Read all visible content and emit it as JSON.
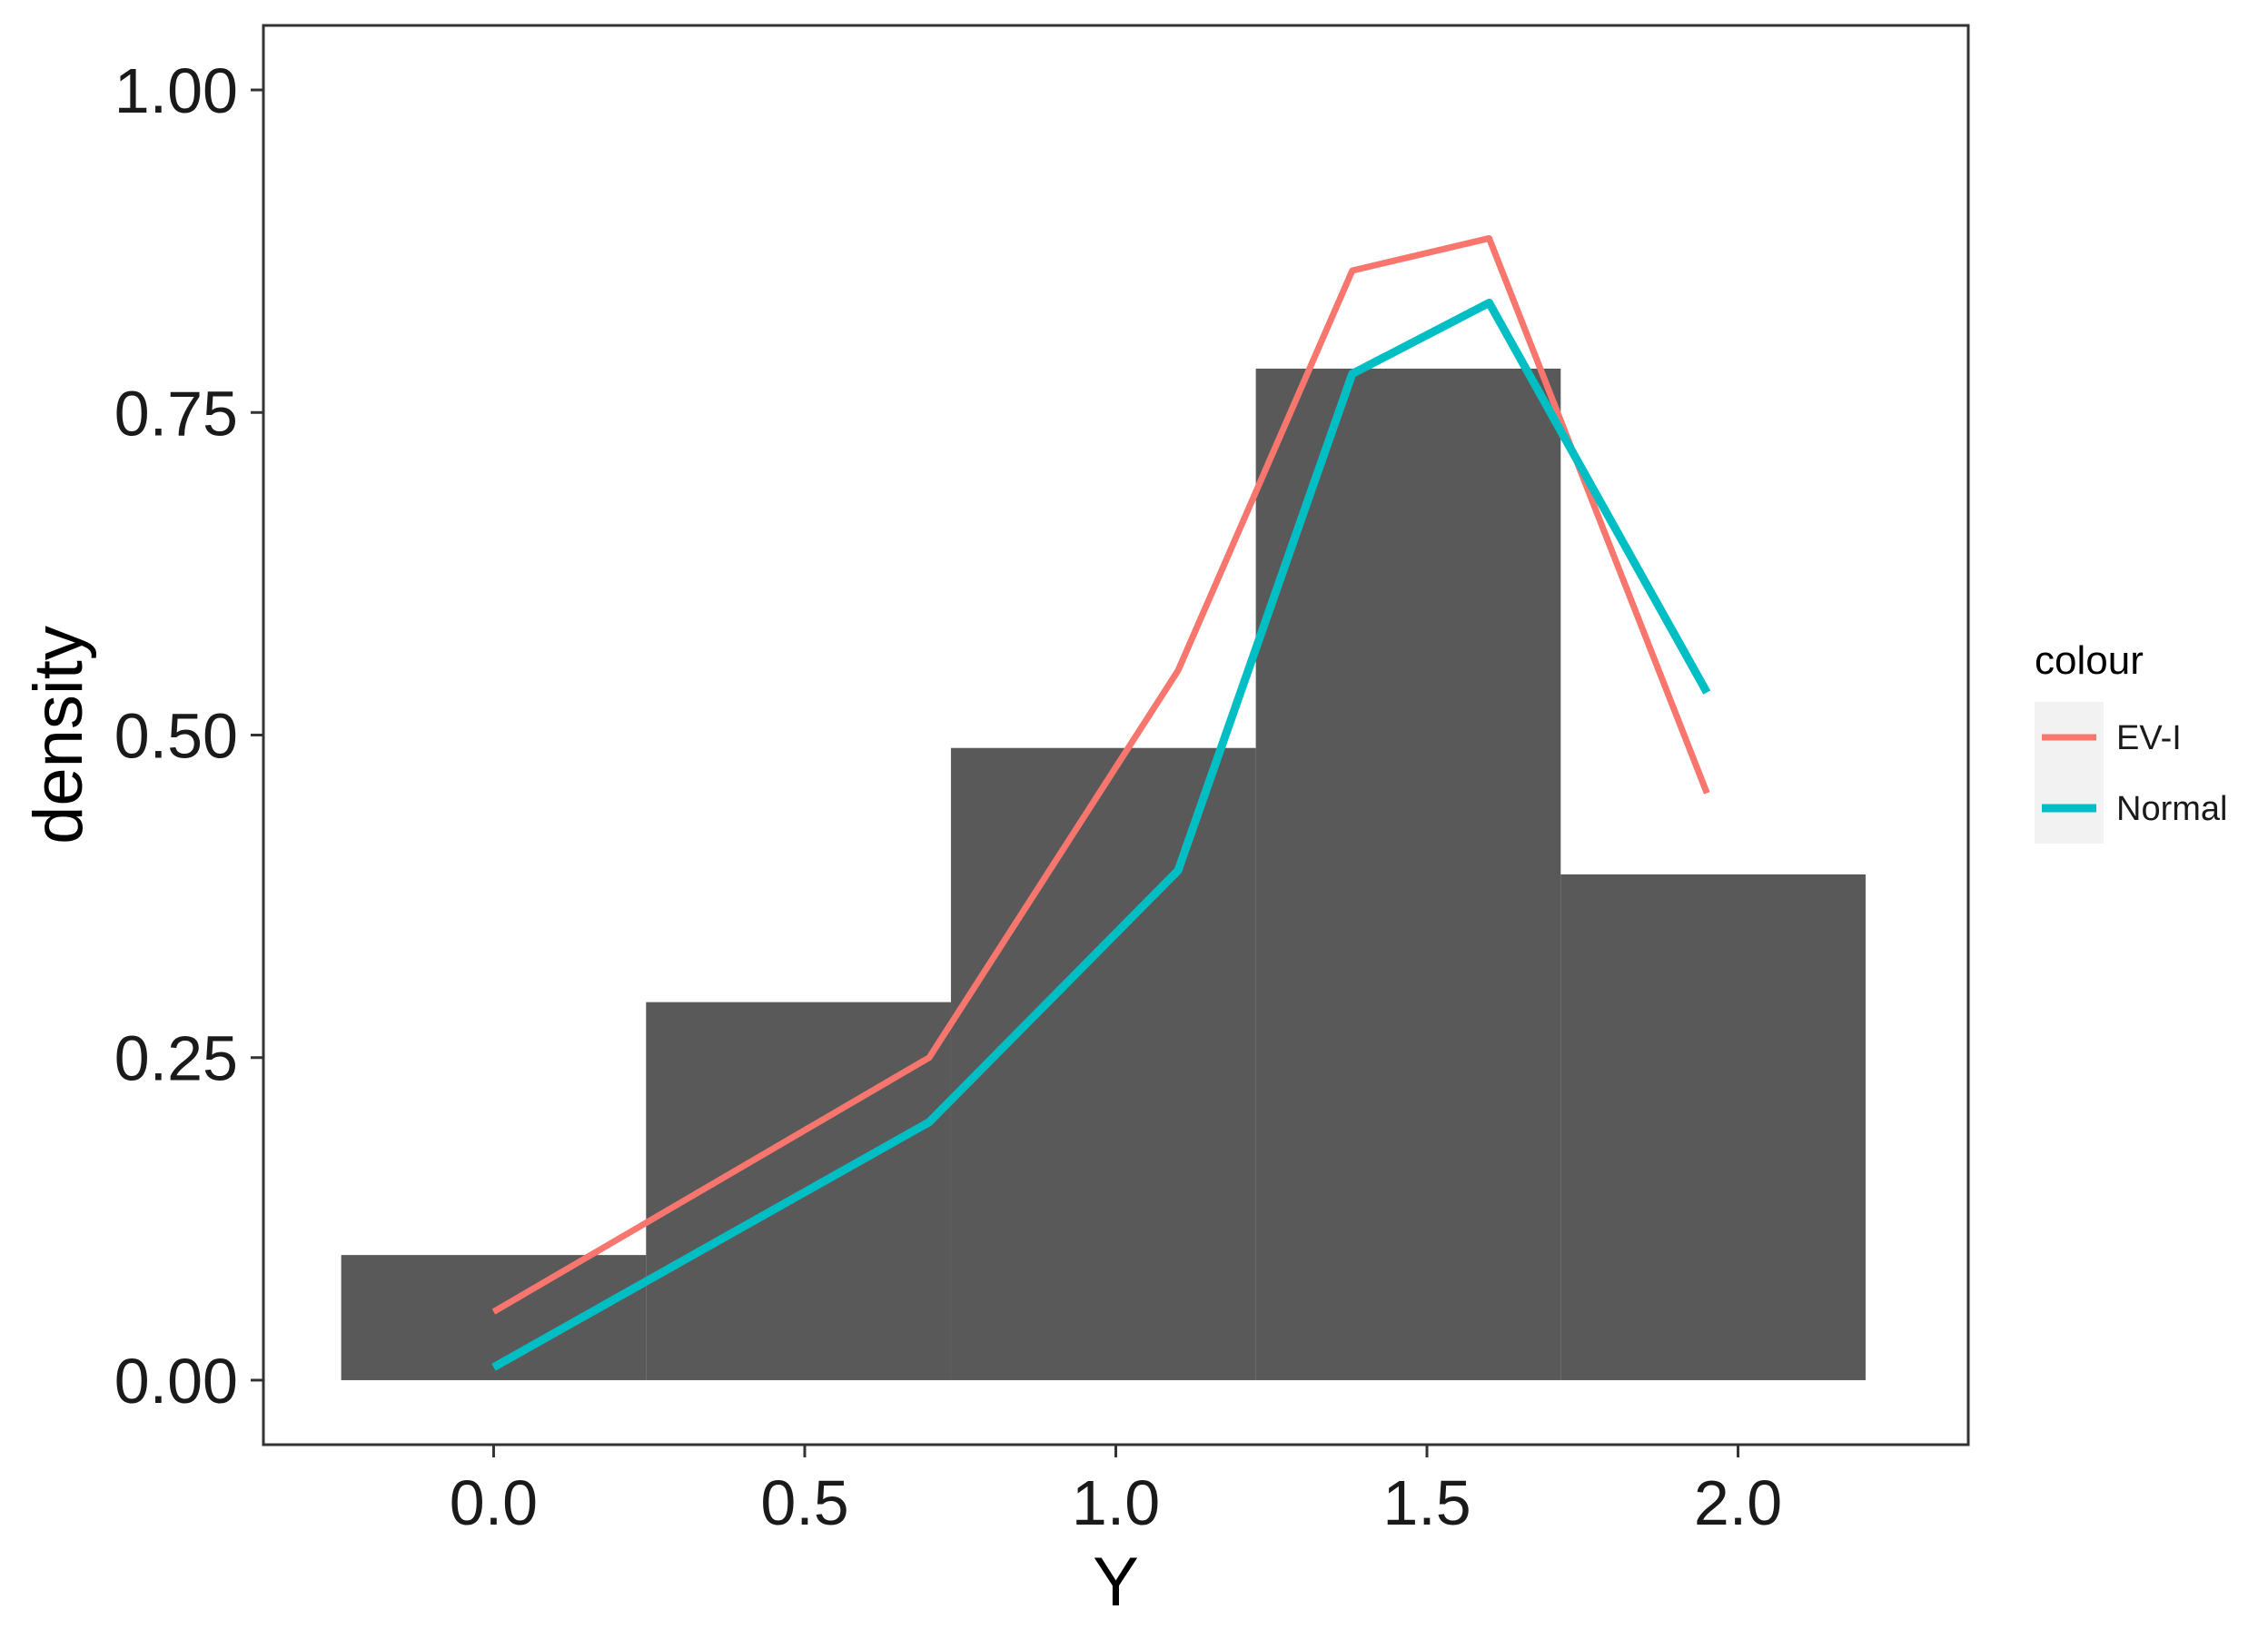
{
  "chart_data": {
    "type": "histogram",
    "xlabel": "Y",
    "ylabel": "density",
    "xlim": [
      -0.37,
      2.37
    ],
    "ylim": [
      -0.05,
      1.05
    ],
    "x_ticks": [
      "0.0",
      "0.5",
      "1.0",
      "1.5",
      "2.0"
    ],
    "y_ticks": [
      "0.00",
      "0.25",
      "0.50",
      "0.75",
      "1.00"
    ],
    "x_tick_values": [
      0.0,
      0.5,
      1.0,
      1.5,
      2.0
    ],
    "y_tick_values": [
      0.0,
      0.25,
      0.5,
      0.75,
      1.0
    ],
    "grid": false,
    "bar_color": "#595959",
    "bins": [
      {
        "x0": -0.245,
        "x1": 0.245,
        "density": 0.097
      },
      {
        "x0": 0.245,
        "x1": 0.735,
        "density": 0.293
      },
      {
        "x0": 0.735,
        "x1": 1.225,
        "density": 0.49
      },
      {
        "x0": 1.225,
        "x1": 1.715,
        "density": 0.784
      },
      {
        "x0": 1.715,
        "x1": 2.205,
        "density": 0.392
      }
    ],
    "legend": {
      "title": "colour",
      "position": "right"
    },
    "series": [
      {
        "name": "EV-I",
        "color": "#F8766D",
        "x": [
          0.0,
          0.7,
          1.1,
          1.38,
          1.6,
          1.95
        ],
        "y": [
          0.053,
          0.25,
          0.55,
          0.86,
          0.885,
          0.455
        ]
      },
      {
        "name": "Normal",
        "color": "#00BFC4",
        "x": [
          0.0,
          0.7,
          1.1,
          1.38,
          1.6,
          1.95
        ],
        "y": [
          0.01,
          0.2,
          0.395,
          0.78,
          0.835,
          0.533
        ]
      }
    ]
  }
}
